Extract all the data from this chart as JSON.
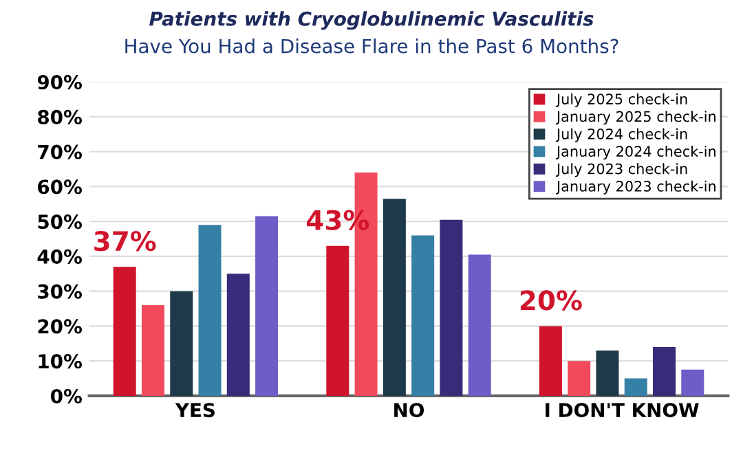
{
  "chart_data": {
    "type": "bar",
    "title": "Patients with Cryoglobulinemic Vasculitis",
    "subtitle": "Have You Had a Disease Flare in the Past 6 Months?",
    "categories": [
      "YES",
      "NO",
      "I DON'T KNOW"
    ],
    "series": [
      {
        "name": "July 2025 check-in",
        "color": "#d0142c",
        "values": [
          37,
          43,
          20
        ],
        "value_labels": [
          "37%",
          "43%",
          "20%"
        ]
      },
      {
        "name": "January 2025 check-in",
        "color": "#f24a5a",
        "values": [
          26,
          64,
          10
        ]
      },
      {
        "name": "July 2024 check-in",
        "color": "#1e3a48",
        "values": [
          30,
          56.5,
          13
        ]
      },
      {
        "name": "January 2024 check-in",
        "color": "#3580a6",
        "values": [
          49,
          46,
          5
        ]
      },
      {
        "name": "July 2023 check-in",
        "color": "#3a2a7a",
        "values": [
          35,
          50.5,
          14
        ]
      },
      {
        "name": "January 2023 check-in",
        "color": "#6e5cc8",
        "values": [
          51.5,
          40.5,
          7.5
        ]
      }
    ],
    "ylim": [
      0,
      90
    ],
    "yticks": [
      {
        "value": 0,
        "label": "0%"
      },
      {
        "value": 10,
        "label": "10%"
      },
      {
        "value": 20,
        "label": "20%"
      },
      {
        "value": 30,
        "label": "30%"
      },
      {
        "value": 40,
        "label": "40%"
      },
      {
        "value": 50,
        "label": "50%"
      },
      {
        "value": 60,
        "label": "60%"
      },
      {
        "value": 70,
        "label": "70%"
      },
      {
        "value": 80,
        "label": "80%"
      },
      {
        "value": 90,
        "label": "90%"
      }
    ],
    "grid": "y",
    "legend": "top right"
  }
}
